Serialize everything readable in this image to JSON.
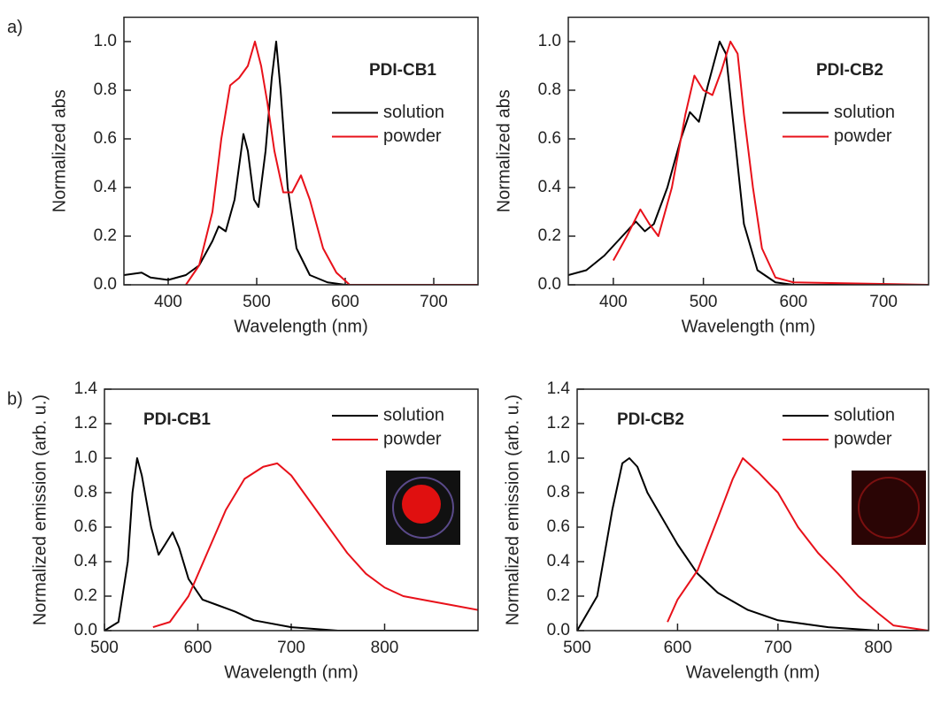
{
  "chart_data": [
    {
      "type": "line",
      "panel_label": "a)",
      "annotation": "PDI-CB1",
      "xlabel": "Wavelength (nm)",
      "ylabel": "Normalized abs",
      "xlim": [
        350,
        750
      ],
      "ylim": [
        0,
        1.1
      ],
      "xticks": [
        400,
        500,
        600,
        700
      ],
      "yticks": [
        {
          "value": 0,
          "label": "0.0"
        },
        0.2,
        0.4,
        0.6,
        0.8,
        {
          "value": 1,
          "label": "1.0"
        }
      ],
      "legend": "upper right",
      "series": [
        {
          "name": "solution",
          "color": "#000000",
          "x": [
            350,
            370,
            380,
            400,
            420,
            435,
            450,
            457,
            465,
            475,
            485,
            490,
            497,
            502,
            510,
            517,
            522,
            527,
            535,
            545,
            560,
            580,
            600,
            750
          ],
          "values": [
            0.04,
            0.05,
            0.03,
            0.02,
            0.04,
            0.08,
            0.18,
            0.24,
            0.22,
            0.35,
            0.62,
            0.55,
            0.35,
            0.32,
            0.55,
            0.85,
            1.0,
            0.8,
            0.4,
            0.15,
            0.04,
            0.01,
            0,
            0
          ]
        },
        {
          "name": "powder",
          "color": "#e8111a",
          "x": [
            420,
            435,
            450,
            460,
            470,
            480,
            490,
            498,
            505,
            512,
            520,
            530,
            540,
            550,
            560,
            575,
            590,
            605,
            750
          ],
          "values": [
            0,
            0.08,
            0.3,
            0.6,
            0.82,
            0.85,
            0.9,
            1.0,
            0.9,
            0.75,
            0.55,
            0.38,
            0.38,
            0.45,
            0.35,
            0.15,
            0.05,
            0,
            0
          ]
        }
      ]
    },
    {
      "type": "line",
      "annotation": "PDI-CB2",
      "xlabel": "Wavelength (nm)",
      "ylabel": "Normalized abs",
      "xlim": [
        350,
        750
      ],
      "ylim": [
        0,
        1.1
      ],
      "xticks": [
        400,
        500,
        600,
        700
      ],
      "yticks": [
        {
          "value": 0,
          "label": "0.0"
        },
        0.2,
        0.4,
        0.6,
        0.8,
        {
          "value": 1,
          "label": "1.0"
        }
      ],
      "legend": "upper right",
      "series": [
        {
          "name": "solution",
          "color": "#000000",
          "x": [
            350,
            370,
            390,
            410,
            425,
            435,
            445,
            460,
            475,
            485,
            495,
            505,
            518,
            525,
            535,
            545,
            560,
            580,
            600,
            750
          ],
          "values": [
            0.04,
            0.06,
            0.12,
            0.2,
            0.26,
            0.22,
            0.25,
            0.4,
            0.6,
            0.71,
            0.67,
            0.82,
            1.0,
            0.95,
            0.6,
            0.25,
            0.06,
            0.01,
            0,
            0
          ]
        },
        {
          "name": "powder",
          "color": "#e8111a",
          "x": [
            400,
            415,
            430,
            440,
            450,
            465,
            480,
            490,
            500,
            510,
            520,
            530,
            538,
            545,
            555,
            565,
            580,
            600,
            750
          ],
          "values": [
            0.1,
            0.2,
            0.31,
            0.25,
            0.2,
            0.4,
            0.7,
            0.86,
            0.8,
            0.78,
            0.88,
            1.0,
            0.95,
            0.7,
            0.4,
            0.15,
            0.03,
            0.01,
            0
          ]
        }
      ]
    },
    {
      "type": "line",
      "panel_label": "b)",
      "annotation": "PDI-CB1",
      "xlabel": "Wavelength (nm)",
      "ylabel": "Normalized emission (arb. u.)",
      "xlim": [
        500,
        900
      ],
      "ylim": [
        0,
        1.4
      ],
      "xticks": [
        500,
        600,
        700,
        800
      ],
      "yticks": [
        {
          "value": 0,
          "label": "0.0"
        },
        0.2,
        0.4,
        0.6,
        0.8,
        {
          "value": 1,
          "label": "1.0"
        },
        1.2,
        1.4
      ],
      "legend": "upper right",
      "series": [
        {
          "name": "solution",
          "color": "#000000",
          "x": [
            500,
            515,
            525,
            530,
            535,
            540,
            550,
            558,
            565,
            573,
            580,
            590,
            605,
            620,
            640,
            660,
            700,
            750,
            900
          ],
          "values": [
            0,
            0.05,
            0.4,
            0.8,
            1.0,
            0.9,
            0.6,
            0.44,
            0.5,
            0.57,
            0.48,
            0.3,
            0.18,
            0.15,
            0.11,
            0.06,
            0.02,
            0,
            0
          ]
        },
        {
          "name": "powder",
          "color": "#e8111a",
          "x": [
            552,
            570,
            590,
            610,
            630,
            650,
            670,
            685,
            700,
            720,
            740,
            760,
            780,
            800,
            820,
            850,
            870,
            900
          ],
          "values": [
            0.02,
            0.05,
            0.2,
            0.45,
            0.7,
            0.88,
            0.95,
            0.97,
            0.9,
            0.75,
            0.6,
            0.45,
            0.33,
            0.25,
            0.2,
            0.17,
            0.15,
            0.12
          ]
        }
      ]
    },
    {
      "type": "line",
      "annotation": "PDI-CB2",
      "xlabel": "Wavelength (nm)",
      "ylabel": "Normalized emission (arb. u.)",
      "xlim": [
        500,
        850
      ],
      "ylim": [
        0,
        1.4
      ],
      "xticks": [
        500,
        600,
        700,
        800
      ],
      "yticks": [
        {
          "value": 0,
          "label": "0.0"
        },
        0.2,
        0.4,
        0.6,
        0.8,
        {
          "value": 1,
          "label": "1.0"
        },
        1.2,
        1.4
      ],
      "legend": "upper right",
      "series": [
        {
          "name": "solution",
          "color": "#000000",
          "x": [
            500,
            520,
            535,
            545,
            552,
            560,
            570,
            585,
            600,
            620,
            640,
            670,
            700,
            750,
            800,
            850
          ],
          "values": [
            0,
            0.2,
            0.7,
            0.97,
            1.0,
            0.95,
            0.8,
            0.65,
            0.5,
            0.33,
            0.22,
            0.12,
            0.06,
            0.02,
            0,
            0
          ]
        },
        {
          "name": "powder",
          "color": "#e8111a",
          "x": [
            590,
            600,
            620,
            640,
            655,
            665,
            680,
            700,
            720,
            740,
            760,
            780,
            800,
            815,
            850
          ],
          "values": [
            0.05,
            0.18,
            0.35,
            0.65,
            0.88,
            1.0,
            0.92,
            0.8,
            0.6,
            0.45,
            0.33,
            0.2,
            0.1,
            0.03,
            0
          ]
        }
      ]
    }
  ]
}
